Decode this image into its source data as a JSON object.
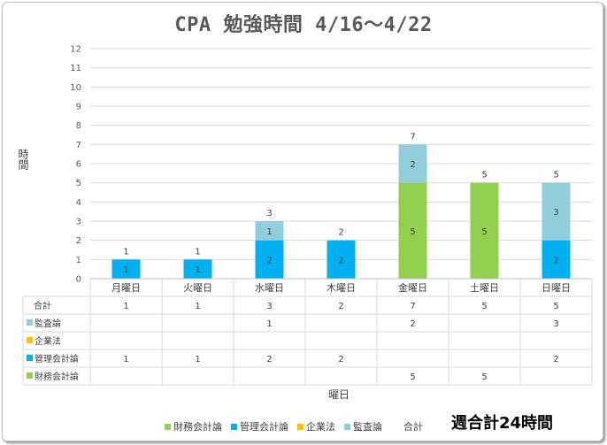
{
  "chart_data": {
    "type": "bar",
    "stacked": true,
    "title": "CPA  勉強時間  4/16～4/22",
    "ylabel": "時間",
    "xlabel": "曜日",
    "ylim": [
      0,
      12
    ],
    "yticks": [
      0,
      1,
      2,
      3,
      4,
      5,
      6,
      7,
      8,
      9,
      10,
      11,
      12
    ],
    "grid": true,
    "categories": [
      "月曜日",
      "火曜日",
      "水曜日",
      "木曜日",
      "金曜日",
      "土曜日",
      "日曜日"
    ],
    "series": [
      {
        "name": "財務会計論",
        "color": "#92d050",
        "values": [
          null,
          null,
          null,
          null,
          5,
          5,
          null
        ]
      },
      {
        "name": "管理会計論",
        "color": "#00b0f0",
        "values": [
          1,
          1,
          2,
          2,
          null,
          null,
          2
        ]
      },
      {
        "name": "企業法",
        "color": "#ffc000",
        "values": [
          null,
          null,
          null,
          null,
          null,
          null,
          null
        ]
      },
      {
        "name": "監査論",
        "color": "#92cddc",
        "values": [
          null,
          null,
          1,
          null,
          2,
          null,
          3
        ]
      }
    ],
    "totals": {
      "name": "合計",
      "values": [
        1,
        1,
        3,
        2,
        7,
        5,
        5
      ]
    },
    "data_table_rows": [
      "合計",
      "監査論",
      "企業法",
      "管理会計論",
      "財務会計論"
    ],
    "legend": {
      "position": "bottom"
    },
    "weekly_total_label": "合計",
    "weekly_total_text": "週合計24時間"
  }
}
